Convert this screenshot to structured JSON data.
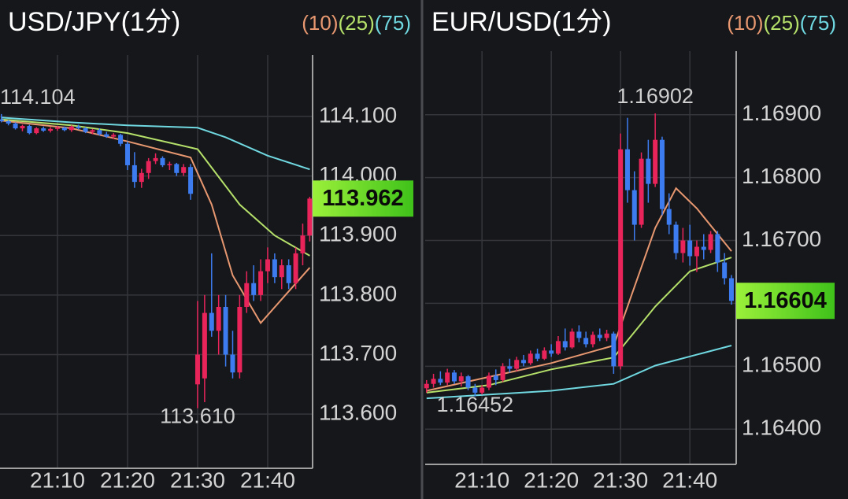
{
  "chart_data": [
    {
      "type": "candlestick",
      "title": "USD/JPY(1分)",
      "x": [
        "21:02",
        "21:03",
        "21:04",
        "21:05",
        "21:06",
        "21:07",
        "21:08",
        "21:09",
        "21:10",
        "21:11",
        "21:12",
        "21:13",
        "21:14",
        "21:15",
        "21:16",
        "21:17",
        "21:18",
        "21:19",
        "21:20",
        "21:21",
        "21:22",
        "21:23",
        "21:24",
        "21:25",
        "21:26",
        "21:27",
        "21:28",
        "21:29",
        "21:30",
        "21:31",
        "21:32",
        "21:33",
        "21:34",
        "21:35",
        "21:36",
        "21:37",
        "21:38",
        "21:39",
        "21:40",
        "21:41",
        "21:42",
        "21:43",
        "21:44",
        "21:45",
        "21:46"
      ],
      "open": [
        114.095,
        114.092,
        114.088,
        114.08,
        114.084,
        114.072,
        114.08,
        114.076,
        114.079,
        114.081,
        114.077,
        114.083,
        114.08,
        114.074,
        114.077,
        114.07,
        114.066,
        114.069,
        114.054,
        114.018,
        113.99,
        114.005,
        114.025,
        114.03,
        114.018,
        114.02,
        114.005,
        114.015,
        113.65,
        113.66,
        113.77,
        113.74,
        113.78,
        113.7,
        113.67,
        113.78,
        113.82,
        113.8,
        113.84,
        113.86,
        113.83,
        113.85,
        113.82,
        113.87,
        113.9
      ],
      "high": [
        114.104,
        114.094,
        114.09,
        114.086,
        114.086,
        114.082,
        114.083,
        114.082,
        114.084,
        114.083,
        114.085,
        114.086,
        114.082,
        114.079,
        114.08,
        114.074,
        114.072,
        114.071,
        114.058,
        114.04,
        114.012,
        114.03,
        114.038,
        114.033,
        114.024,
        114.022,
        114.02,
        114.02,
        113.79,
        113.8,
        113.87,
        113.8,
        113.8,
        113.74,
        113.8,
        113.84,
        113.85,
        113.86,
        113.88,
        113.87,
        113.86,
        113.86,
        113.88,
        113.92,
        113.965
      ],
      "low": [
        114.09,
        114.085,
        114.078,
        114.075,
        114.07,
        114.07,
        114.074,
        114.073,
        114.076,
        114.075,
        114.074,
        114.078,
        114.072,
        114.07,
        114.068,
        114.064,
        114.062,
        114.05,
        114.01,
        113.98,
        113.98,
        113.995,
        114.02,
        114.015,
        114.01,
        114.0,
        114.0,
        113.96,
        113.61,
        113.62,
        113.73,
        113.7,
        113.68,
        113.66,
        113.66,
        113.77,
        113.79,
        113.79,
        113.82,
        113.82,
        113.81,
        113.81,
        113.81,
        113.85,
        113.89
      ],
      "close": [
        114.092,
        114.088,
        114.08,
        114.084,
        114.072,
        114.08,
        114.076,
        114.079,
        114.081,
        114.077,
        114.083,
        114.08,
        114.074,
        114.077,
        114.07,
        114.066,
        114.069,
        114.054,
        114.018,
        113.99,
        114.005,
        114.025,
        114.03,
        114.018,
        114.02,
        114.005,
        114.015,
        113.97,
        113.7,
        113.77,
        113.74,
        113.78,
        113.7,
        113.67,
        113.78,
        113.82,
        113.8,
        113.84,
        113.86,
        113.83,
        113.85,
        113.82,
        113.87,
        113.9,
        113.962
      ],
      "up_color": "#e8245a",
      "down_color": "#3d7cf0",
      "series": [
        {
          "name": "(10)",
          "color": "#e89870",
          "x": [
            "21:02",
            "21:12",
            "21:20",
            "21:29",
            "21:32",
            "21:35",
            "21:39",
            "21:42",
            "21:46"
          ],
          "values": [
            114.093,
            114.08,
            114.058,
            114.031,
            113.952,
            113.833,
            113.753,
            113.793,
            113.846
          ]
        },
        {
          "name": "(25)",
          "color": "#b5e06a",
          "x": [
            "21:02",
            "21:12",
            "21:20",
            "21:30",
            "21:36",
            "21:41",
            "21:46"
          ],
          "values": [
            114.095,
            114.085,
            114.072,
            114.045,
            113.952,
            113.9,
            113.866
          ]
        },
        {
          "name": "(75)",
          "color": "#70d8e0",
          "x": [
            "21:02",
            "21:12",
            "21:20",
            "21:30",
            "21:34",
            "21:40",
            "21:46"
          ],
          "values": [
            114.098,
            114.09,
            114.085,
            114.081,
            114.065,
            114.034,
            114.011
          ]
        }
      ],
      "high_label": 114.104,
      "low_label": {
        "value": 113.61,
        "label": "113.610"
      },
      "last_price": 113.962,
      "ylim": [
        113.509,
        114.203
      ],
      "yticks": [
        {
          "value": 114.1,
          "label": "114.100"
        },
        {
          "value": 114.0,
          "label": "114.000"
        },
        {
          "value": 113.9,
          "label": "113.900"
        },
        {
          "value": 113.8,
          "label": "113.800"
        },
        {
          "value": 113.7,
          "label": "113.700"
        },
        {
          "value": 113.6,
          "label": "113.600"
        }
      ],
      "xticks": [
        "21:10",
        "21:20",
        "21:30",
        "21:40"
      ],
      "grid": true
    },
    {
      "type": "candlestick",
      "title": "EUR/USD(1分)",
      "x": [
        "21:02",
        "21:03",
        "21:04",
        "21:05",
        "21:06",
        "21:07",
        "21:08",
        "21:09",
        "21:10",
        "21:11",
        "21:12",
        "21:13",
        "21:14",
        "21:15",
        "21:16",
        "21:17",
        "21:18",
        "21:19",
        "21:20",
        "21:21",
        "21:22",
        "21:23",
        "21:24",
        "21:25",
        "21:26",
        "21:27",
        "21:28",
        "21:29",
        "21:30",
        "21:31",
        "21:32",
        "21:33",
        "21:34",
        "21:35",
        "21:36",
        "21:37",
        "21:38",
        "21:39",
        "21:40",
        "21:41",
        "21:42",
        "21:43",
        "21:44",
        "21:45",
        "21:46"
      ],
      "open": [
        1.16465,
        1.16472,
        1.1648,
        1.16474,
        1.1649,
        1.16476,
        1.16484,
        1.16466,
        1.16458,
        1.16466,
        1.16485,
        1.16478,
        1.165,
        1.16496,
        1.1651,
        1.16505,
        1.1652,
        1.16512,
        1.16525,
        1.1652,
        1.1654,
        1.1653,
        1.16555,
        1.16545,
        1.16535,
        1.1655,
        1.16545,
        1.16552,
        1.165,
        1.16845,
        1.1678,
        1.16725,
        1.1683,
        1.1679,
        1.1686,
        1.1675,
        1.16725,
        1.1668,
        1.167,
        1.16675,
        1.1669,
        1.16685,
        1.1671,
        1.16665,
        1.1664
      ],
      "high": [
        1.16478,
        1.16488,
        1.16492,
        1.16496,
        1.16494,
        1.1649,
        1.16486,
        1.16472,
        1.1647,
        1.1649,
        1.16495,
        1.16505,
        1.16512,
        1.16515,
        1.16518,
        1.16525,
        1.16528,
        1.1653,
        1.16535,
        1.16548,
        1.1656,
        1.1656,
        1.16565,
        1.16555,
        1.16555,
        1.1656,
        1.16558,
        1.16555,
        1.1687,
        1.16895,
        1.1681,
        1.1684,
        1.1686,
        1.16902,
        1.16865,
        1.16775,
        1.1673,
        1.1672,
        1.16725,
        1.167,
        1.1671,
        1.16715,
        1.16715,
        1.1668,
        1.16645
      ],
      "low": [
        1.16458,
        1.16466,
        1.1647,
        1.1647,
        1.16472,
        1.16468,
        1.16462,
        1.16452,
        1.16455,
        1.16462,
        1.1647,
        1.16475,
        1.1649,
        1.16492,
        1.165,
        1.16502,
        1.16508,
        1.1651,
        1.16515,
        1.16518,
        1.16525,
        1.16528,
        1.16538,
        1.1653,
        1.1653,
        1.1654,
        1.1654,
        1.16488,
        1.16495,
        1.1676,
        1.167,
        1.1672,
        1.1676,
        1.16785,
        1.1674,
        1.1671,
        1.1667,
        1.16665,
        1.1666,
        1.1665,
        1.1667,
        1.1668,
        1.1665,
        1.1663,
        1.16598
      ],
      "close": [
        1.16472,
        1.1648,
        1.16474,
        1.1649,
        1.16476,
        1.16484,
        1.16466,
        1.16458,
        1.16466,
        1.16485,
        1.16478,
        1.165,
        1.16496,
        1.1651,
        1.16505,
        1.1652,
        1.16512,
        1.16525,
        1.1652,
        1.1654,
        1.1653,
        1.16555,
        1.16545,
        1.16535,
        1.1655,
        1.16545,
        1.16552,
        1.165,
        1.16845,
        1.1678,
        1.16725,
        1.1683,
        1.1679,
        1.1686,
        1.1675,
        1.16725,
        1.1668,
        1.167,
        1.16675,
        1.1669,
        1.16685,
        1.1671,
        1.16665,
        1.1664,
        1.16604
      ],
      "up_color": "#e8245a",
      "down_color": "#3d7cf0",
      "series": [
        {
          "name": "(10)",
          "color": "#e89870",
          "x": [
            "21:02",
            "21:11",
            "21:20",
            "21:29",
            "21:31",
            "21:35",
            "21:38",
            "21:41",
            "21:46"
          ],
          "values": [
            1.16461,
            1.16483,
            1.16505,
            1.16533,
            1.16595,
            1.1672,
            1.16783,
            1.16751,
            1.16683
          ]
        },
        {
          "name": "(25)",
          "color": "#b5e06a",
          "x": [
            "21:02",
            "21:11",
            "21:20",
            "21:29",
            "21:35",
            "21:40",
            "21:46"
          ],
          "values": [
            1.16458,
            1.1647,
            1.16495,
            1.16514,
            1.16595,
            1.16651,
            1.16673
          ]
        },
        {
          "name": "(75)",
          "color": "#70d8e0",
          "x": [
            "21:02",
            "21:20",
            "21:29",
            "21:35",
            "21:46"
          ],
          "values": [
            1.16449,
            1.16461,
            1.16472,
            1.16501,
            1.16533
          ]
        }
      ],
      "high_label": 1.16902,
      "low_label": 1.16452,
      "last_price": 1.16604,
      "ylim": [
        1.16344,
        1.17001
      ],
      "yticks": [
        {
          "value": 1.169,
          "label": "1.16900"
        },
        {
          "value": 1.168,
          "label": "1.16800"
        },
        {
          "value": 1.167,
          "label": "1.16700"
        },
        {
          "value": 1.166,
          "label": "1.16600"
        },
        {
          "value": 1.165,
          "label": "1.16500"
        },
        {
          "value": 1.164,
          "label": "1.16400"
        }
      ],
      "xticks": [
        "21:10",
        "21:20",
        "21:30",
        "21:40"
      ],
      "grid": true
    }
  ]
}
